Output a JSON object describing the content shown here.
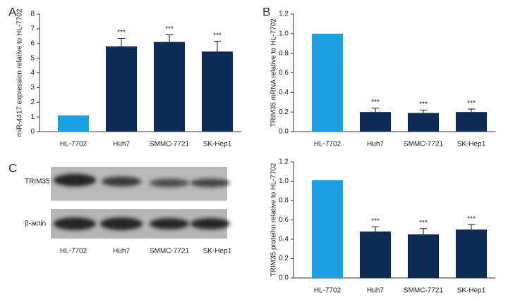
{
  "chart_data": [
    {
      "type": "bar",
      "panel": "A",
      "ylabel": "miR-4417 expression relative to HL-7702",
      "categories": [
        "HL-7702",
        "Huh7",
        "SMMC-7721",
        "SK-Hep1"
      ],
      "values": [
        1.1,
        5.8,
        6.1,
        5.45
      ],
      "errors": [
        null,
        0.55,
        0.5,
        0.7
      ],
      "annotations": [
        null,
        "***",
        "***",
        "***"
      ],
      "colors": [
        "#1ba1e2",
        "#0c2c56",
        "#0c2c56",
        "#0c2c56"
      ],
      "ylim": [
        0,
        8
      ],
      "yticks": [
        0,
        1,
        2,
        3,
        4,
        5,
        6,
        7,
        8
      ]
    },
    {
      "type": "bar",
      "panel": "B",
      "ylabel": "TRIM35 mRNA relative to HL-7702",
      "categories": [
        "HL-7702",
        "Huh7",
        "SMMC-7721",
        "SK-Hep1"
      ],
      "values": [
        1.0,
        0.2,
        0.19,
        0.2
      ],
      "errors": [
        null,
        0.04,
        0.03,
        0.03
      ],
      "annotations": [
        null,
        "***",
        "***",
        "***"
      ],
      "colors": [
        "#1ba1e2",
        "#0c2c56",
        "#0c2c56",
        "#0c2c56"
      ],
      "ylim": [
        0,
        1.2
      ],
      "yticks": [
        {
          "value": 0,
          "label": "0.0"
        },
        0.2,
        0.4,
        0.6,
        0.8,
        {
          "value": 1,
          "label": "1.0"
        },
        1.2
      ]
    },
    {
      "type": "bar",
      "ylabel": "TRIM35 proteihn relative to HL-7702",
      "categories": [
        "HL-7702",
        "Huh7",
        "SMMC-7721",
        "SK-Hep1"
      ],
      "values": [
        1.01,
        0.48,
        0.45,
        0.5
      ],
      "errors": [
        null,
        0.05,
        0.06,
        0.05
      ],
      "annotations": [
        null,
        "***",
        "***",
        "***"
      ],
      "colors": [
        "#1ba1e2",
        "#0c2c56",
        "#0c2c56",
        "#0c2c56"
      ],
      "ylim": [
        0,
        1.2
      ],
      "yticks": [
        {
          "value": 0,
          "label": "0.0"
        },
        0.2,
        0.4,
        0.6,
        0.8,
        {
          "value": 1,
          "label": "1.0"
        },
        1.2
      ]
    }
  ],
  "blot": {
    "panel": "C",
    "rows": [
      "TRIM35",
      "β-actin"
    ],
    "lanes": [
      "HL-7702",
      "Huh7",
      "SMMC-7721",
      "SK-Hep1"
    ]
  }
}
